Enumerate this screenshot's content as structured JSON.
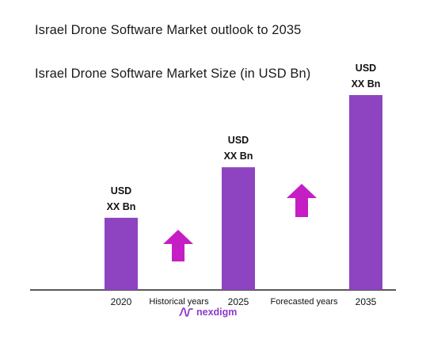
{
  "chart_data": {
    "type": "bar",
    "title": "Israel Drone Software Market outlook to 2035",
    "subtitle": "Israel Drone Software Market Size (in USD Bn)",
    "categories": [
      "2020",
      "2025",
      "2035"
    ],
    "values": [
      1.0,
      1.7,
      2.7
    ],
    "bar_labels": [
      [
        "USD",
        "XX Bn"
      ],
      [
        "USD",
        "XX Bn"
      ],
      [
        "USD",
        "XX Bn"
      ]
    ],
    "period_labels": [
      "Historical years",
      "Forecasted years"
    ],
    "bar_color": "#8e44c0",
    "arrow_color": "#c51ec5",
    "ylim": [
      0,
      2.7
    ],
    "grid": false,
    "xlabel": "",
    "ylabel": ""
  },
  "brand": {
    "name": "nexdigm",
    "color": "#8e3ac9"
  }
}
